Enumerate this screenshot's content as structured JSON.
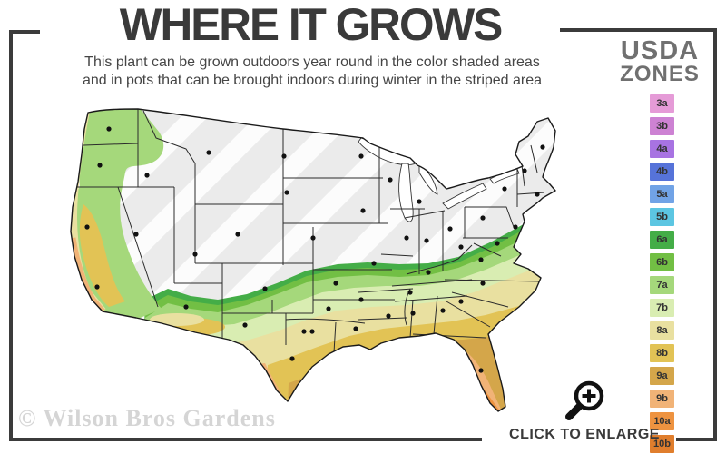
{
  "header": {
    "title": "WHERE IT GROWS",
    "subtitle_line1": "This plant can be grown outdoors year round in the color shaded areas",
    "subtitle_line2": "and in pots that can be brought indoors during winter in the striped area"
  },
  "legend": {
    "title_line1": "USDA",
    "title_line2": "ZONES",
    "zones": [
      {
        "label": "3a",
        "color": "#e59bd7"
      },
      {
        "label": "3b",
        "color": "#cd82d3"
      },
      {
        "label": "4a",
        "color": "#a873e2"
      },
      {
        "label": "4b",
        "color": "#5673d9"
      },
      {
        "label": "5a",
        "color": "#71a3e6"
      },
      {
        "label": "5b",
        "color": "#5cc6e2"
      },
      {
        "label": "6a",
        "color": "#44ad47"
      },
      {
        "label": "6b",
        "color": "#72bf44"
      },
      {
        "label": "7a",
        "color": "#a5d87b"
      },
      {
        "label": "7b",
        "color": "#d9edb2"
      },
      {
        "label": "8a",
        "color": "#e9e0a0"
      },
      {
        "label": "8b",
        "color": "#e2c355"
      },
      {
        "label": "9a",
        "color": "#d4a64a"
      },
      {
        "label": "9b",
        "color": "#f1b377"
      },
      {
        "label": "10a",
        "color": "#ee9340"
      },
      {
        "label": "10b",
        "color": "#e07e2d"
      }
    ]
  },
  "map": {
    "base_color": "#ebebeb",
    "outline_color": "#1a1a1a"
  },
  "icons": {
    "enlarge": "magnifier-plus-icon"
  },
  "footer": {
    "watermark": "© Wilson Bros Gardens",
    "enlarge_label": "CLICK TO ENLARGE"
  }
}
